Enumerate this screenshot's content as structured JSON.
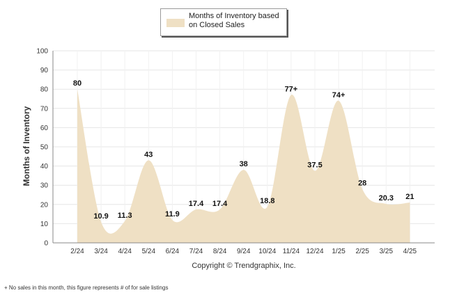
{
  "legend": {
    "label": "Months of Inventory based on Closed Sales",
    "color": "#efe0c4"
  },
  "copyright": "Copyright © Trendgraphix, Inc.",
  "footnote": "+ No sales in this month, this figure represents # of for sale listings",
  "chart_data": {
    "type": "area",
    "title": "",
    "xlabel": "",
    "ylabel": "Months of Inventory",
    "ylim": [
      0,
      100
    ],
    "yticks": [
      0,
      10,
      20,
      30,
      40,
      50,
      60,
      70,
      80,
      90,
      100
    ],
    "grid": true,
    "legend_position": "top-center",
    "categories": [
      "2/24",
      "3/24",
      "4/24",
      "5/24",
      "6/24",
      "7/24",
      "8/24",
      "9/24",
      "10/24",
      "11/24",
      "12/24",
      "1/25",
      "2/25",
      "3/25",
      "4/25"
    ],
    "series": [
      {
        "name": "Months of Inventory based on Closed Sales",
        "values": [
          80,
          10.9,
          11.3,
          43,
          11.9,
          17.4,
          17.4,
          38,
          18.8,
          77,
          37.5,
          74,
          28,
          20.3,
          21
        ],
        "labels": [
          "80",
          "10.9",
          "11.3",
          "43",
          "11.9",
          "17.4",
          "17.4",
          "38",
          "18.8",
          "77+",
          "37.5",
          "74+",
          "28",
          "20.3",
          "21"
        ],
        "color": "#efe0c4"
      }
    ]
  }
}
